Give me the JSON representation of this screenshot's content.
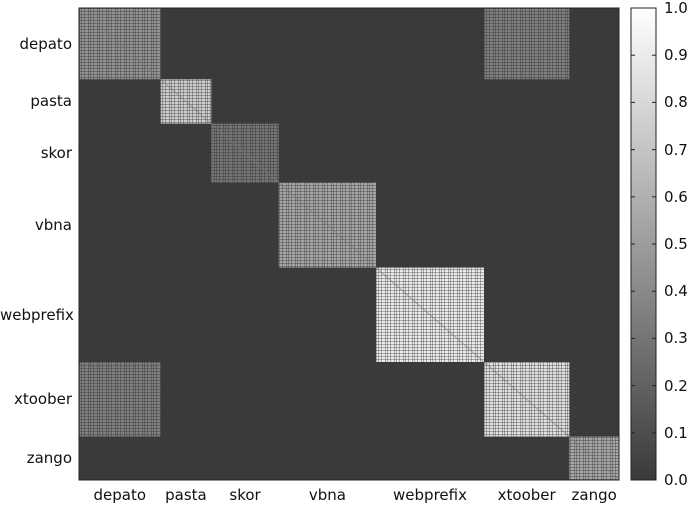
{
  "chart_data": {
    "type": "heatmap",
    "title": "",
    "xlabel": "",
    "ylabel": "",
    "categories": [
      "depato",
      "pasta",
      "skor",
      "vbna",
      "webprefix",
      "xtoober",
      "zango"
    ],
    "group_fraction": [
      0.151,
      0.094,
      0.125,
      0.18,
      0.2,
      0.158,
      0.092
    ],
    "block_similarity": [
      [
        0.45,
        0.0,
        0.0,
        0.0,
        0.0,
        0.35,
        0.0
      ],
      [
        0.0,
        0.75,
        0.0,
        0.0,
        0.0,
        0.0,
        0.0
      ],
      [
        0.0,
        0.0,
        0.3,
        0.0,
        0.0,
        0.0,
        0.0
      ],
      [
        0.0,
        0.0,
        0.0,
        0.55,
        0.0,
        0.0,
        0.0
      ],
      [
        0.0,
        0.0,
        0.0,
        0.0,
        0.9,
        0.0,
        0.0
      ],
      [
        0.35,
        0.0,
        0.0,
        0.0,
        0.0,
        0.85,
        0.0
      ],
      [
        0.0,
        0.0,
        0.0,
        0.0,
        0.0,
        0.0,
        0.55
      ]
    ],
    "colorbar": {
      "range": [
        0.0,
        1.0
      ],
      "ticks": [
        "1.0",
        "0.9",
        "0.8",
        "0.7",
        "0.6",
        "0.5",
        "0.4",
        "0.3",
        "0.2",
        "0.1",
        "0.0"
      ]
    },
    "colormap": "gray",
    "background_color": "#3a3a3a",
    "grid": false
  }
}
